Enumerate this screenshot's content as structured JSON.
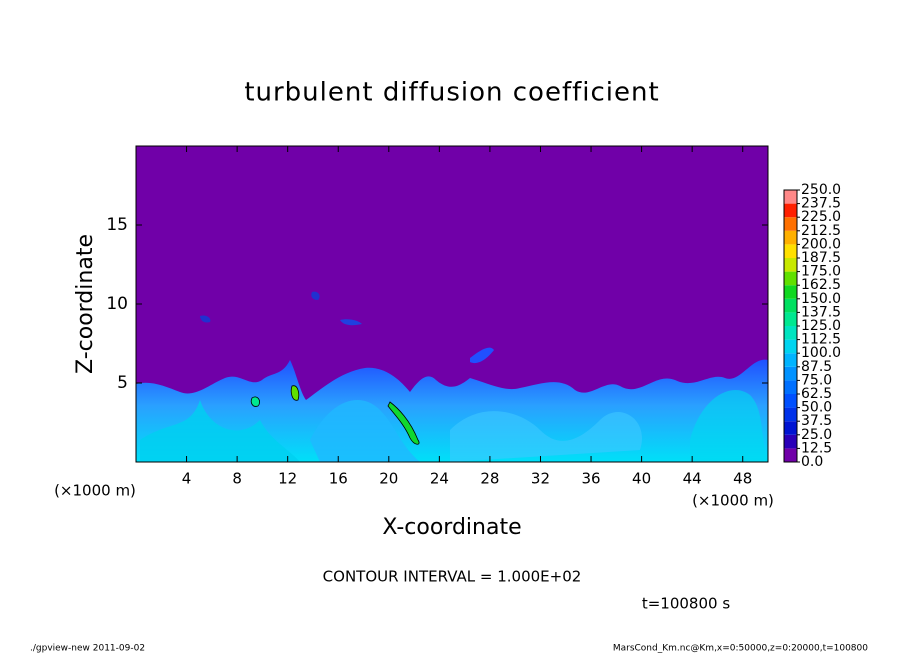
{
  "chart_data": {
    "type": "heatmap",
    "title": "turbulent diffusion coefficient",
    "xlabel": "X-coordinate",
    "ylabel": "Z-coordinate",
    "x_unit_labels": [
      "(×1000 m)",
      "(×1000 m)"
    ],
    "xlim": [
      0,
      50
    ],
    "ylim": [
      0,
      20
    ],
    "xticks": [
      4,
      8,
      12,
      16,
      20,
      24,
      28,
      32,
      36,
      40,
      44,
      48
    ],
    "yticks": [
      5,
      10,
      15
    ],
    "background_color": "#7000a8",
    "colorbar": {
      "levels": [
        {
          "value": 0,
          "label": "0.0"
        },
        {
          "value": 12.5,
          "label": "12.5"
        },
        {
          "value": 25,
          "label": "25.0"
        },
        {
          "value": 37.5,
          "label": "37.5"
        },
        {
          "value": 50,
          "label": "50.0"
        },
        {
          "value": 62.5,
          "label": "62.5"
        },
        {
          "value": 75,
          "label": "75.0"
        },
        {
          "value": 87.5,
          "label": "87.5"
        },
        {
          "value": 100,
          "label": "100.0"
        },
        {
          "value": 112.5,
          "label": "112.5"
        },
        {
          "value": 125,
          "label": "125.0"
        },
        {
          "value": 137.5,
          "label": "137.5"
        },
        {
          "value": 150,
          "label": "150.0"
        },
        {
          "value": 162.5,
          "label": "162.5"
        },
        {
          "value": 175,
          "label": "175.0"
        },
        {
          "value": 187.5,
          "label": "187.5"
        },
        {
          "value": 200,
          "label": "200.0"
        },
        {
          "value": 212.5,
          "label": "212.5"
        },
        {
          "value": 225,
          "label": "225.0"
        },
        {
          "value": 237.5,
          "label": "237.5"
        },
        {
          "value": 250,
          "label": "250.0"
        }
      ],
      "colors": [
        "#7000a8",
        "#2a00b8",
        "#0014d2",
        "#0032ea",
        "#0050ff",
        "#0070ff",
        "#0092ff",
        "#00b4ff",
        "#00d4f0",
        "#00e4c0",
        "#00e890",
        "#00e060",
        "#10d820",
        "#60e000",
        "#c8e800",
        "#ffe000",
        "#ffb000",
        "#ff7000",
        "#ff2000",
        "#ff8888"
      ]
    },
    "annotations": [
      "CONTOUR INTERVAL = 1.000E+02",
      "t=100800 s"
    ],
    "footer": [
      "./gpview-new  2011-09-02",
      "MarsCond_Km.nc@Km,x=0:50000,z=0:20000,t=100800"
    ]
  }
}
